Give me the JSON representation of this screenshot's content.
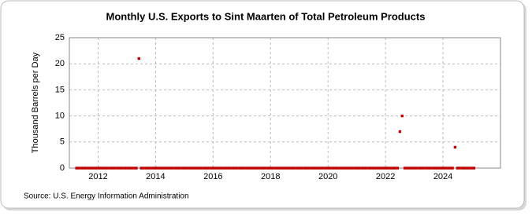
{
  "chart_data": {
    "type": "scatter",
    "title": "Monthly U.S. Exports to Sint Maarten of Total Petroleum Products",
    "y_label": "Thousand Barrels per Day",
    "source": "Source: U.S. Energy Information Administration",
    "xlim": [
      2011,
      2026
    ],
    "xticks": [
      2012,
      2014,
      2016,
      2018,
      2020,
      2022,
      2024
    ],
    "ylim": [
      0,
      25
    ],
    "yticks": [
      0,
      5,
      10,
      15,
      20,
      25
    ],
    "grid": true,
    "series": [
      {
        "color": "#c00000",
        "x": [
          2011.25,
          2011.33,
          2011.42,
          2011.5,
          2011.58,
          2011.67,
          2011.75,
          2011.83,
          2011.92,
          2012,
          2012.08,
          2012.17,
          2012.25,
          2012.33,
          2012.42,
          2012.5,
          2012.58,
          2012.67,
          2012.75,
          2012.83,
          2012.92,
          2013,
          2013.08,
          2013.17,
          2013.25,
          2013.33,
          2013.42,
          2013.5,
          2013.58,
          2013.67,
          2013.75,
          2013.83,
          2013.92,
          2014,
          2014.08,
          2014.17,
          2014.25,
          2014.33,
          2014.42,
          2014.5,
          2014.58,
          2014.67,
          2014.75,
          2014.83,
          2014.92,
          2015,
          2015.08,
          2015.17,
          2015.25,
          2015.33,
          2015.42,
          2015.5,
          2015.58,
          2015.67,
          2015.75,
          2015.83,
          2015.92,
          2016,
          2016.08,
          2016.17,
          2016.25,
          2016.33,
          2016.42,
          2016.5,
          2016.58,
          2016.67,
          2016.75,
          2016.83,
          2016.92,
          2017,
          2017.08,
          2017.17,
          2017.25,
          2017.33,
          2017.42,
          2017.5,
          2017.58,
          2017.67,
          2017.75,
          2017.83,
          2017.92,
          2018,
          2018.08,
          2018.17,
          2018.25,
          2018.33,
          2018.42,
          2018.5,
          2018.58,
          2018.67,
          2018.75,
          2018.83,
          2018.92,
          2019,
          2019.08,
          2019.17,
          2019.25,
          2019.33,
          2019.42,
          2019.5,
          2019.58,
          2019.67,
          2019.75,
          2019.83,
          2019.92,
          2020,
          2020.08,
          2020.17,
          2020.25,
          2020.33,
          2020.42,
          2020.5,
          2020.58,
          2020.67,
          2020.75,
          2020.83,
          2020.92,
          2021,
          2021.08,
          2021.17,
          2021.25,
          2021.33,
          2021.42,
          2021.5,
          2021.58,
          2021.67,
          2021.75,
          2021.83,
          2021.92,
          2022,
          2022.08,
          2022.17,
          2022.25,
          2022.33,
          2022.42,
          2022.5,
          2022.58,
          2022.67,
          2022.75,
          2022.83,
          2022.92,
          2023,
          2023.08,
          2023.17,
          2023.25,
          2023.33,
          2023.42,
          2023.5,
          2023.58,
          2023.67,
          2023.75,
          2023.83,
          2023.92,
          2024,
          2024.08,
          2024.17,
          2024.25,
          2024.33,
          2024.42,
          2024.5,
          2024.58,
          2024.67,
          2024.75,
          2024.83,
          2024.92,
          2025,
          2025.08
        ],
        "values": [
          0,
          0,
          0,
          0,
          0,
          0,
          0,
          0,
          0,
          0,
          0,
          0,
          0,
          0,
          0,
          0,
          0,
          0,
          0,
          0,
          0,
          0,
          0,
          0,
          0,
          0,
          21,
          0,
          0,
          0,
          0,
          0,
          0,
          0,
          0,
          0,
          0,
          0,
          0,
          0,
          0,
          0,
          0,
          0,
          0,
          0,
          0,
          0,
          0,
          0,
          0,
          0,
          0,
          0,
          0,
          0,
          0,
          0,
          0,
          0,
          0,
          0,
          0,
          0,
          0,
          0,
          0,
          0,
          0,
          0,
          0,
          0,
          0,
          0,
          0,
          0,
          0,
          0,
          0,
          0,
          0,
          0,
          0,
          0,
          0,
          0,
          0,
          0,
          0,
          0,
          0,
          0,
          0,
          0,
          0,
          0,
          0,
          0,
          0,
          0,
          0,
          0,
          0,
          0,
          0,
          0,
          0,
          0,
          0,
          0,
          0,
          0,
          0,
          0,
          0,
          0,
          0,
          0,
          0,
          0,
          0,
          0,
          0,
          0,
          0,
          0,
          0,
          0,
          0,
          0,
          0,
          0,
          0,
          0,
          0,
          7,
          10,
          0,
          0,
          0,
          0,
          0,
          0,
          0,
          0,
          0,
          0,
          0,
          0,
          0,
          0,
          0,
          0,
          0,
          0,
          0,
          0,
          0,
          4,
          0,
          0,
          0,
          0,
          0,
          0,
          0,
          0
        ]
      }
    ]
  }
}
